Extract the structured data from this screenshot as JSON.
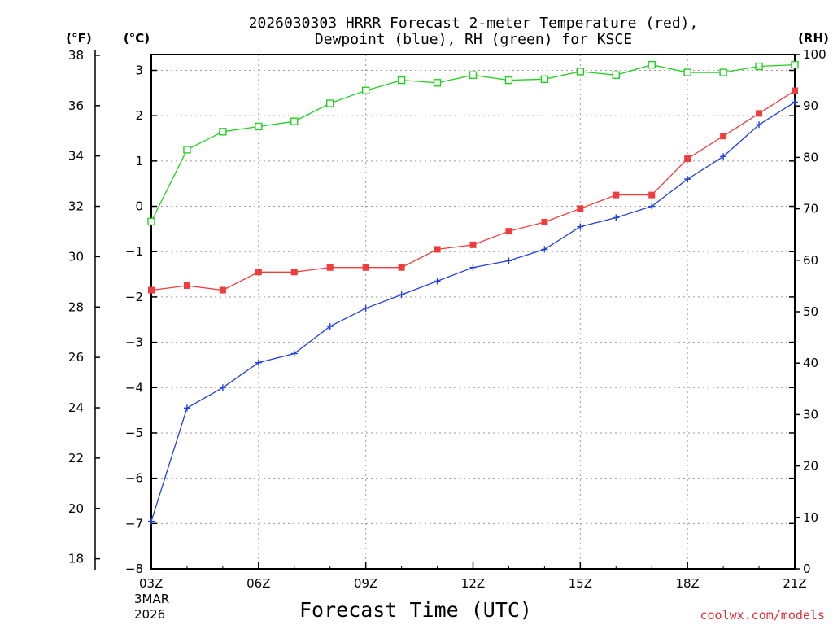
{
  "chart_data": {
    "type": "line",
    "title_line1": "2026030303 HRRR Forecast 2-meter Temperature (red),",
    "title_line2": "Dewpoint (blue), RH (green) for KSCE",
    "xlabel": "Forecast Time (UTC)",
    "credit": "coolwx.com/models",
    "axis_units": {
      "fahrenheit": "(°F)",
      "celsius": "(°C)",
      "rh": "(RH)"
    },
    "x_tick_labels": [
      "03Z",
      "06Z",
      "09Z",
      "12Z",
      "15Z",
      "18Z",
      "21Z"
    ],
    "x_tick_hours": [
      3,
      6,
      9,
      12,
      15,
      18,
      21
    ],
    "x_date_line1": "3MAR",
    "x_date_line2": "2026",
    "xlim": [
      3,
      21
    ],
    "celsius_ylim": [
      -8,
      3.35
    ],
    "celsius_ticks": [
      -8,
      -7,
      -6,
      -5,
      -4,
      -3,
      -2,
      -1,
      0,
      1,
      2,
      3
    ],
    "fahrenheit_ticks": [
      18,
      20,
      22,
      24,
      26,
      28,
      30,
      32,
      34,
      36,
      38
    ],
    "rh_ylim": [
      0,
      100
    ],
    "rh_ticks": [
      0,
      10,
      20,
      30,
      40,
      50,
      60,
      70,
      80,
      90,
      100
    ],
    "hours": [
      3,
      4,
      5,
      6,
      7,
      8,
      9,
      10,
      11,
      12,
      13,
      14,
      15,
      16,
      17,
      18,
      19,
      20,
      21
    ],
    "series": [
      {
        "name": "Temperature",
        "color": "#f03c3c",
        "axis": "celsius",
        "marker": "filled-square",
        "values": [
          -1.85,
          -1.75,
          -1.85,
          -1.45,
          -1.45,
          -1.35,
          -1.35,
          -1.35,
          -0.95,
          -0.85,
          -0.55,
          -0.35,
          -0.05,
          0.25,
          0.25,
          1.05,
          1.55,
          2.05,
          2.55
        ]
      },
      {
        "name": "Dewpoint",
        "color": "#2040e0",
        "axis": "celsius",
        "marker": "plus",
        "values": [
          -6.95,
          -4.45,
          -4.0,
          -3.45,
          -3.25,
          -2.65,
          -2.25,
          -1.95,
          -1.65,
          -1.35,
          -1.2,
          -0.95,
          -0.45,
          -0.25,
          0.0,
          0.6,
          1.1,
          1.8,
          2.3
        ]
      },
      {
        "name": "RH",
        "color": "#22d022",
        "axis": "rh",
        "marker": "open-square",
        "values": [
          67.5,
          81.5,
          85.0,
          86.0,
          87.0,
          90.5,
          93.0,
          95.0,
          94.5,
          96.0,
          95.0,
          95.2,
          96.7,
          96.0,
          98.0,
          96.5,
          96.5,
          97.7,
          98.0
        ]
      }
    ]
  }
}
